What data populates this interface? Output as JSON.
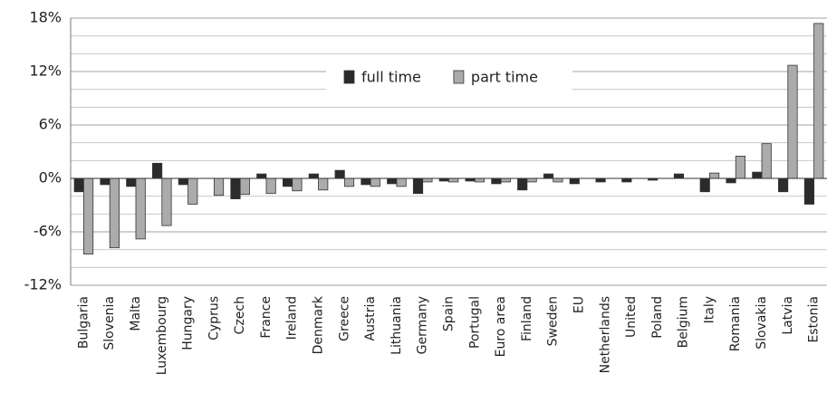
{
  "chart_data": {
    "type": "bar",
    "categories": [
      "Bulgaria",
      "Slovenia",
      "Malta",
      "Luxembourg",
      "Hungary",
      "Cyprus",
      "Czech",
      "France",
      "Ireland",
      "Denmark",
      "Greece",
      "Austria",
      "Lithuania",
      "Germany",
      "Spain",
      "Portugal",
      "Euro area",
      "Finland",
      "Sweden",
      "EU",
      "Netherlands",
      "United",
      "Poland",
      "Belgium",
      "Italy",
      "Romania",
      "Slovakia",
      "Latvia",
      "Estonia"
    ],
    "series": [
      {
        "name": "full time",
        "color": "#2b2b2b",
        "values": [
          -1.5,
          -0.7,
          -0.9,
          1.7,
          -0.7,
          0,
          -2.3,
          0.5,
          -0.9,
          0.5,
          0.9,
          -0.7,
          -0.6,
          -1.7,
          -0.3,
          -0.3,
          -0.6,
          -1.3,
          0.5,
          -0.6,
          -0.4,
          -0.4,
          -0.2,
          0.5,
          -1.5,
          -0.5,
          0.7,
          -1.5,
          -2.9
        ]
      },
      {
        "name": "part time",
        "color": "#ababab",
        "values": [
          -8.5,
          -7.8,
          -6.8,
          -5.3,
          -2.9,
          -1.9,
          -1.8,
          -1.7,
          -1.4,
          -1.3,
          -0.9,
          -0.9,
          -0.9,
          -0.4,
          -0.4,
          -0.4,
          -0.4,
          -0.4,
          -0.4,
          0,
          0,
          0,
          0,
          0,
          0.6,
          2.5,
          3.9,
          12.7,
          17.4
        ]
      }
    ],
    "ylim": [
      -12,
      18
    ],
    "yticks": [
      {
        "value": -12,
        "label": "-12%"
      },
      {
        "value": -6,
        "label": "-6%"
      },
      {
        "value": 0,
        "label": "0%"
      },
      {
        "value": 6,
        "label": "6%"
      },
      {
        "value": 12,
        "label": "12%"
      },
      {
        "value": 18,
        "label": "18%"
      }
    ],
    "minor_gridlines": [
      -10,
      -8,
      -4,
      -2,
      2,
      4,
      8,
      10,
      14,
      16
    ],
    "grid": true
  }
}
